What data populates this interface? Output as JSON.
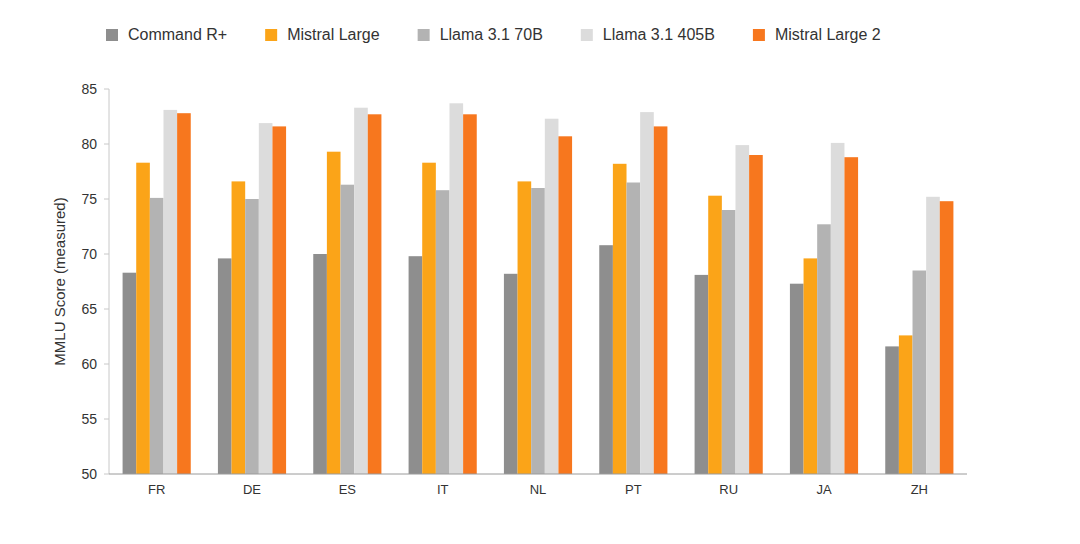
{
  "chart_data": {
    "type": "bar",
    "y_label": "MMLU Score (measured)",
    "categories": [
      "FR",
      "DE",
      "ES",
      "IT",
      "NL",
      "PT",
      "RU",
      "JA",
      "ZH"
    ],
    "series": [
      {
        "name": "Command R+",
        "color": "#8e8e8e",
        "values": [
          68.3,
          69.6,
          70.0,
          69.8,
          68.2,
          70.8,
          68.1,
          67.3,
          61.6
        ]
      },
      {
        "name": "Mistral Large",
        "color": "#fba418",
        "values": [
          78.3,
          76.6,
          79.3,
          78.3,
          76.6,
          78.2,
          75.3,
          69.6,
          62.6
        ]
      },
      {
        "name": "Llama 3.1 70B",
        "color": "#b3b3b3",
        "values": [
          75.1,
          75.0,
          76.3,
          75.8,
          76.0,
          76.5,
          74.0,
          72.7,
          68.5
        ]
      },
      {
        "name": "Llama 3.1 405B",
        "color": "#dcdcdc",
        "values": [
          83.1,
          81.9,
          83.3,
          83.7,
          82.3,
          82.9,
          79.9,
          80.1,
          75.2
        ]
      },
      {
        "name": "Mistral Large 2",
        "color": "#f7771e",
        "values": [
          82.8,
          81.6,
          82.7,
          82.7,
          80.7,
          81.6,
          79.0,
          78.8,
          74.8
        ]
      }
    ],
    "ylim": [
      50,
      85
    ],
    "yticks": [
      50,
      55,
      60,
      65,
      70,
      75,
      80,
      85
    ],
    "grid": false,
    "legend": "top"
  }
}
